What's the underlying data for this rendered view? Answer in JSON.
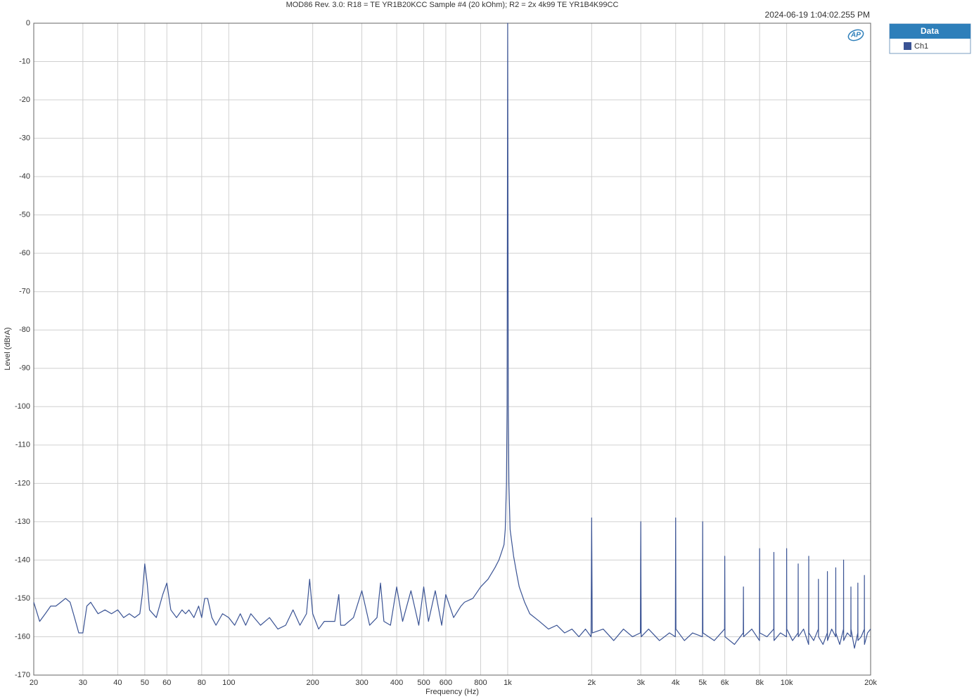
{
  "chart_data": {
    "type": "line",
    "title": "MOD86 Rev. 3.0: R18 = TE YR1B20KCC Sample #4 (20 kOhm); R2 = 2x 4k99 TE YR1B4K99CC",
    "timestamp": "2024-06-19 1:04:02.255 PM",
    "logo": "AP",
    "legend_title": "Data",
    "xlabel": "Frequency (Hz)",
    "ylabel": "Level (dBrA)",
    "xscale": "log",
    "grid": true,
    "xlim": [
      20,
      20000
    ],
    "ylim": [
      -170,
      0
    ],
    "xticks": [
      20,
      30,
      40,
      50,
      60,
      80,
      100,
      200,
      300,
      400,
      500,
      600,
      800,
      {
        "value": 1000,
        "label": "1k"
      },
      {
        "value": 2000,
        "label": "2k"
      },
      {
        "value": 3000,
        "label": "3k"
      },
      {
        "value": 4000,
        "label": "4k"
      },
      {
        "value": 5000,
        "label": "5k"
      },
      {
        "value": 6000,
        "label": "6k"
      },
      {
        "value": 8000,
        "label": "8k"
      },
      {
        "value": 10000,
        "label": "10k"
      },
      {
        "value": 20000,
        "label": "20k"
      }
    ],
    "yticks": [
      0,
      -10,
      -20,
      -30,
      -40,
      -50,
      -60,
      -70,
      -80,
      -90,
      -100,
      -110,
      -120,
      -130,
      -140,
      -150,
      -160,
      -170
    ],
    "x": [
      20,
      21,
      22,
      23,
      24,
      25,
      26,
      27,
      28,
      29,
      30,
      31,
      32,
      34,
      36,
      38,
      40,
      42,
      44,
      46,
      48,
      49,
      50,
      51,
      52,
      55,
      58,
      60,
      62,
      65,
      68,
      70,
      72,
      75,
      78,
      80,
      82,
      84,
      87,
      90,
      95,
      100,
      105,
      110,
      115,
      120,
      130,
      140,
      150,
      160,
      170,
      180,
      190,
      195,
      200,
      210,
      220,
      240,
      248,
      252,
      260,
      280,
      300,
      320,
      340,
      350,
      360,
      380,
      400,
      420,
      450,
      480,
      500,
      520,
      550,
      580,
      600,
      640,
      680,
      700,
      750,
      800,
      850,
      900,
      930,
      950,
      970,
      980,
      990,
      995,
      1000,
      1005,
      1010,
      1020,
      1050,
      1080,
      1100,
      1150,
      1200,
      1300,
      1400,
      1500,
      1600,
      1700,
      1800,
      1900,
      1990,
      2000,
      2010,
      2200,
      2400,
      2600,
      2800,
      2990,
      3000,
      3010,
      3200,
      3500,
      3800,
      3990,
      4000,
      4010,
      4300,
      4600,
      4990,
      5000,
      5010,
      5500,
      5990,
      6000,
      6010,
      6500,
      6990,
      7000,
      7010,
      7500,
      7990,
      8000,
      8010,
      8500,
      8990,
      9000,
      9010,
      9500,
      9990,
      10000,
      10010,
      10500,
      10990,
      11000,
      11010,
      11500,
      11990,
      12000,
      12010,
      12500,
      12990,
      13000,
      13010,
      13500,
      13990,
      14000,
      14010,
      14500,
      14990,
      15000,
      15010,
      15500,
      15990,
      16000,
      16010,
      16500,
      16990,
      17000,
      17010,
      17500,
      17990,
      18000,
      18010,
      18500,
      18990,
      19000,
      19010,
      19500,
      20000
    ],
    "series": [
      {
        "name": "Ch1",
        "color": "#3a5394",
        "values": [
          -151,
          -156,
          -154,
          -152,
          -152,
          -151,
          -150,
          -151,
          -155,
          -159,
          -159,
          -152,
          -151,
          -154,
          -153,
          -154,
          -153,
          -155,
          -154,
          -155,
          -154,
          -149,
          -141,
          -146,
          -153,
          -155,
          -149,
          -146,
          -153,
          -155,
          -153,
          -154,
          -153,
          -155,
          -152,
          -155,
          -150,
          -150,
          -155,
          -157,
          -154,
          -155,
          -157,
          -154,
          -157,
          -154,
          -157,
          -155,
          -158,
          -157,
          -153,
          -157,
          -154,
          -145,
          -154,
          -158,
          -156,
          -156,
          -149,
          -157,
          -157,
          -155,
          -148,
          -157,
          -155,
          -146,
          -156,
          -157,
          -147,
          -156,
          -148,
          -157,
          -147,
          -156,
          -148,
          -157,
          -149,
          -155,
          -152,
          -151,
          -150,
          -147,
          -145,
          -142,
          -140,
          -138,
          -136,
          -132,
          -120,
          -100,
          0,
          -100,
          -120,
          -132,
          -139,
          -144,
          -147,
          -151,
          -154,
          -156,
          -158,
          -157,
          -159,
          -158,
          -160,
          -158,
          -160,
          -129,
          -159,
          -158,
          -161,
          -158,
          -160,
          -159,
          -130,
          -160,
          -158,
          -161,
          -159,
          -160,
          -129,
          -158,
          -161,
          -159,
          -160,
          -130,
          -159,
          -161,
          -158,
          -139,
          -160,
          -162,
          -159,
          -147,
          -160,
          -158,
          -161,
          -137,
          -159,
          -160,
          -158,
          -138,
          -161,
          -159,
          -160,
          -137,
          -158,
          -161,
          -159,
          -141,
          -160,
          -158,
          -162,
          -139,
          -159,
          -161,
          -158,
          -145,
          -160,
          -162,
          -159,
          -143,
          -161,
          -158,
          -160,
          -142,
          -159,
          -162,
          -158,
          -140,
          -161,
          -159,
          -160,
          -147,
          -158,
          -163,
          -159,
          -146,
          -161,
          -160,
          -158,
          -144,
          -162,
          -159,
          -158
        ]
      }
    ]
  }
}
